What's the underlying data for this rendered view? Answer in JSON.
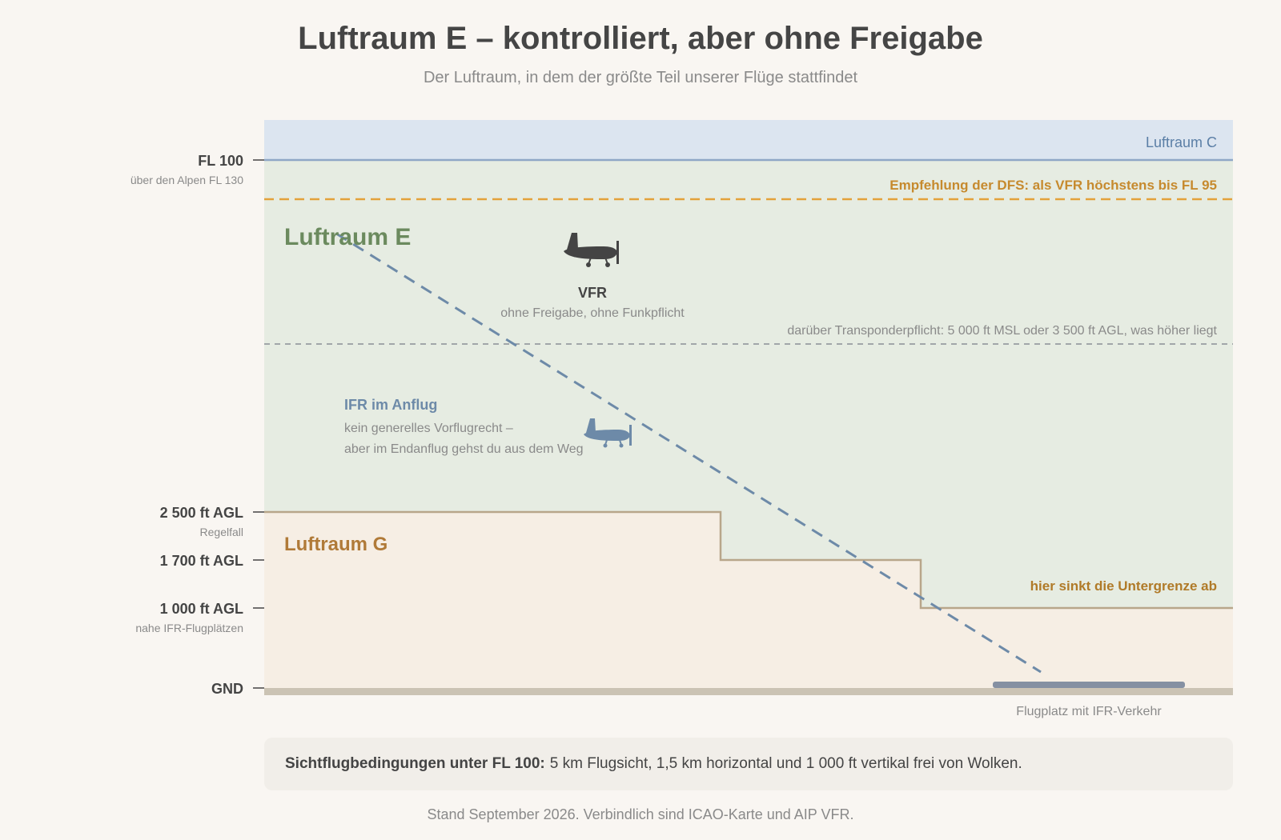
{
  "header": {
    "title": "Luftraum E – kontrolliert, aber ohne Freigabe",
    "subtitle": "Der Luftraum, in dem der größte Teil unserer Flüge stattfindet"
  },
  "altitudes": {
    "fl100": {
      "label": "FL 100",
      "sub": "über den Alpen FL 130"
    },
    "agl2500": {
      "label": "2 500 ft AGL",
      "sub": "Regelfall"
    },
    "agl1700": {
      "label": "1 700 ft AGL",
      "sub": ""
    },
    "agl1000": {
      "label": "1 000 ft AGL",
      "sub": "nahe IFR-Flugplätzen"
    },
    "gnd": {
      "label": "GND",
      "sub": ""
    }
  },
  "zones": {
    "c": {
      "label": "Luftraum C",
      "color": "#dce5f0",
      "line": "#8fa7c6",
      "text_color": "#5b7fa6"
    },
    "e": {
      "label": "Luftraum E",
      "color": "#e6ece2",
      "text_color": "#6b8a5e"
    },
    "g": {
      "label": "Luftraum G",
      "color": "#f6eee4",
      "line": "#b8a68a",
      "text_color": "#b07a38"
    }
  },
  "annotations": {
    "dfs": "Empfehlung der DFS: als VFR höchstens bis FL 95",
    "transponder": "darüber Transponderpflicht: 5 000 ft MSL oder 3 500 ft AGL, was höher liegt",
    "vfr_title": "VFR",
    "vfr_sub": "ohne Freigabe, ohne Funkpflicht",
    "ifr_title": "IFR im Anflug",
    "ifr_line1": "kein generelles Vorflugrecht –",
    "ifr_line2": "aber im Endanflug gehst du aus dem Weg",
    "sink": "hier sinkt die Untergrenze ab",
    "airfield": "Flugplatz mit IFR-Verkehr"
  },
  "colors": {
    "dfs": "#e3a23b",
    "dfs_text": "#c68a2e",
    "ifr": "#6d8aa8",
    "vfr_plane": "#444444",
    "sink_text": "#b07a28",
    "ground": "#cbc3b4",
    "runway": "#8590a2"
  },
  "icons": {
    "vfr_plane": "airplane-icon",
    "ifr_plane": "airplane-icon"
  },
  "note": {
    "strong": "Sichtflugbedingungen unter FL 100:",
    "text": "5 km Flugsicht, 1,5 km horizontal und 1 000 ft vertikal frei von Wolken."
  },
  "footer": "Stand September 2026. Verbindlich sind ICAO-Karte und AIP VFR."
}
